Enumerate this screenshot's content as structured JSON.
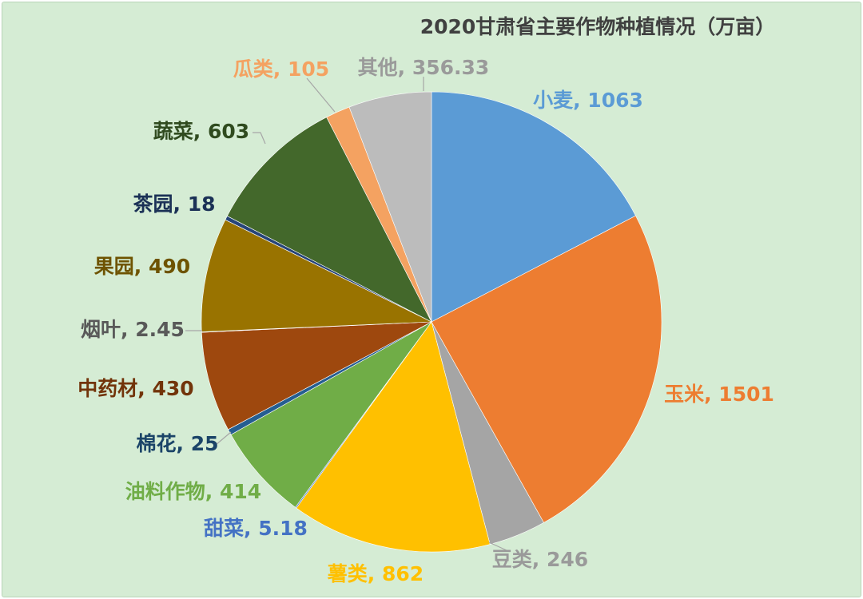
{
  "chart_data": {
    "type": "pie",
    "title": "2020甘肃省主要作物种植情况（万亩）",
    "slices": [
      {
        "name": "小麦",
        "value": 1063,
        "label": "小麦, 1063",
        "color": "#5b9bd5"
      },
      {
        "name": "玉米",
        "value": 1501,
        "label": "玉米, 1501",
        "color": "#ed7d31"
      },
      {
        "name": "豆类",
        "value": 246,
        "label": "豆类, 246",
        "color": "#a5a5a5"
      },
      {
        "name": "薯类",
        "value": 862,
        "label": "薯类, 862",
        "color": "#ffc000"
      },
      {
        "name": "甜菜",
        "value": 5.18,
        "label": "甜菜, 5.18",
        "color": "#4472c4"
      },
      {
        "name": "油料作物",
        "value": 414,
        "label": "油料作物, 414",
        "color": "#70ad47"
      },
      {
        "name": "棉花",
        "value": 25,
        "label": "棉花, 25",
        "color": "#255e91"
      },
      {
        "name": "中药材",
        "value": 430,
        "label": "中药材, 430",
        "color": "#9e480e"
      },
      {
        "name": "烟叶",
        "value": 2.45,
        "label": "烟叶, 2.45",
        "color": "#636363"
      },
      {
        "name": "果园",
        "value": 490,
        "label": "果园, 490",
        "color": "#997300"
      },
      {
        "name": "茶园",
        "value": 18,
        "label": "茶园, 18",
        "color": "#264478"
      },
      {
        "name": "蔬菜",
        "value": 603,
        "label": "蔬菜, 603",
        "color": "#43682b"
      },
      {
        "name": "瓜类",
        "value": 105,
        "label": "瓜类, 105",
        "color": "#f4a261"
      },
      {
        "name": "其他",
        "value": 356.33,
        "label": "其他, 356.33",
        "color": "#bcbcbc"
      }
    ]
  }
}
